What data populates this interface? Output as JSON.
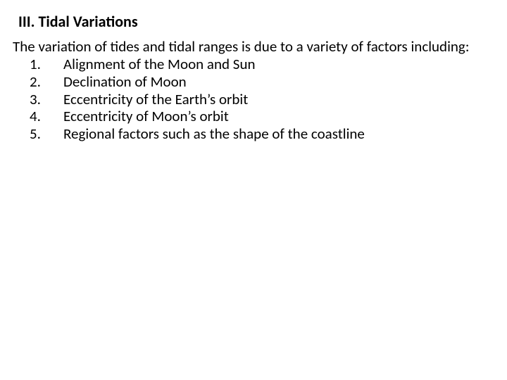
{
  "text_color": "#000000",
  "background_color": "#ffffff",
  "heading": {
    "text": "III. Tidal Variations",
    "font_size_pt": 16,
    "font_weight": 700
  },
  "intro": {
    "text": "The variation of tides and tidal ranges is due to a variety of factors including:",
    "font_size_pt": 16,
    "font_weight": 400
  },
  "factors": {
    "font_size_pt": 16,
    "font_weight": 400,
    "items": [
      {
        "num": "1.",
        "text": "Alignment of the Moon and Sun"
      },
      {
        "num": "2.",
        "text": "Declination of Moon"
      },
      {
        "num": "3.",
        "text": "Eccentricity of the Earth’s orbit"
      },
      {
        "num": "4.",
        "text": "Eccentricity of Moon’s orbit"
      },
      {
        "num": "5.",
        "text": "Regional factors such as the shape of the coastline"
      }
    ]
  }
}
